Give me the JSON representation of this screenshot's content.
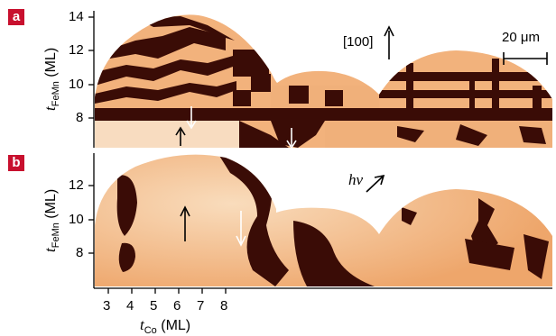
{
  "panels": [
    {
      "tag": "a",
      "y_ticks": [
        "14",
        "12",
        "10",
        "8"
      ]
    },
    {
      "tag": "b",
      "y_ticks": [
        "12",
        "10",
        "8"
      ]
    }
  ],
  "y_axis_label": {
    "symbol": "t",
    "subscript": "FeMn",
    "unit": "(ML)"
  },
  "x_axis_label": {
    "symbol": "t",
    "subscript": "Co",
    "unit": "(ML)"
  },
  "x_ticks": [
    "3",
    "4",
    "5",
    "6",
    "7",
    "8"
  ],
  "annotations": {
    "direction": "[100]",
    "scale_bar": "20 μm",
    "photon": "hν"
  },
  "colors": {
    "tag_red": "#c8102e",
    "light_domain": "#f0b07a",
    "dark_domain": "#3a0c06",
    "background_light": "#f6d5b2"
  }
}
